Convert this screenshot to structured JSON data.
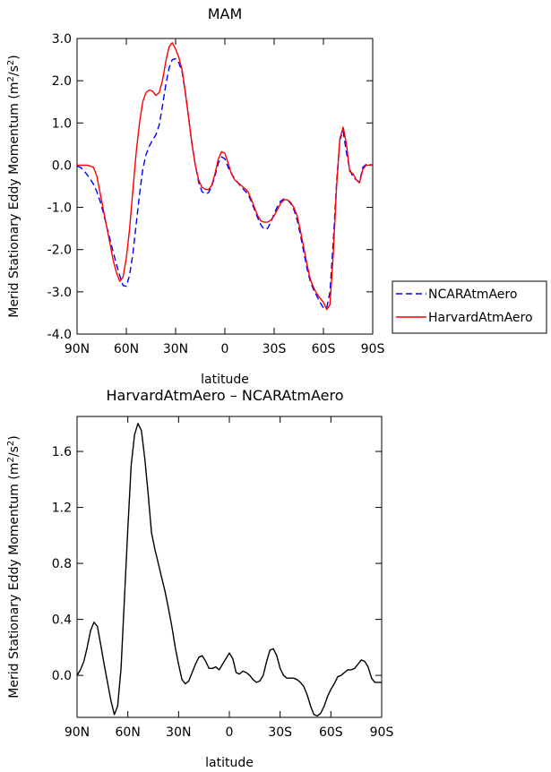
{
  "chart_data": [
    {
      "type": "line",
      "title": "MAM",
      "xlabel": "latitude",
      "ylabel": "Merid Stationary Eddy Momentum (m",
      "ylabel_sup": "2",
      "ylabel_mid": "/s",
      "ylabel_sup2": "2",
      "ylabel_end": ")",
      "xlim": [
        90,
        -90
      ],
      "ylim": [
        -4.0,
        3.0
      ],
      "xticks": [
        90,
        60,
        30,
        0,
        -30,
        -60,
        -90
      ],
      "xtick_labels": [
        "90N",
        "60N",
        "30N",
        "0",
        "30S",
        "60S",
        "90S"
      ],
      "yticks": [
        -4.0,
        -3.0,
        -2.0,
        -1.0,
        0.0,
        1.0,
        2.0,
        3.0
      ],
      "ytick_labels": [
        "-4.0",
        "-3.0",
        "-2.0",
        "-1.0",
        "0.0",
        "1.0",
        "2.0",
        "3.0"
      ],
      "legend": "right",
      "series": [
        {
          "name": "NCARAtmAero",
          "color": "#0000ff",
          "dash": true,
          "x": [
            90,
            88,
            86,
            84,
            82,
            80,
            78,
            76,
            74,
            72,
            70,
            68,
            66,
            64,
            62,
            60,
            58,
            56,
            54,
            52,
            50,
            48,
            46,
            44,
            42,
            40,
            38,
            36,
            34,
            32,
            30,
            28,
            26,
            24,
            22,
            20,
            18,
            16,
            14,
            12,
            10,
            8,
            6,
            4,
            2,
            0,
            -2,
            -4,
            -6,
            -8,
            -10,
            -12,
            -14,
            -16,
            -18,
            -20,
            -22,
            -24,
            -26,
            -28,
            -30,
            -32,
            -34,
            -36,
            -38,
            -40,
            -42,
            -44,
            -46,
            -48,
            -50,
            -52,
            -54,
            -56,
            -58,
            -60,
            -62,
            -64,
            -66,
            -68,
            -70,
            -72,
            -74,
            -76,
            -78,
            -80,
            -82,
            -84,
            -86,
            -88,
            -90
          ],
          "values": [
            -0.02,
            -0.05,
            -0.12,
            -0.22,
            -0.33,
            -0.45,
            -0.62,
            -0.85,
            -1.12,
            -1.45,
            -1.75,
            -2.05,
            -2.35,
            -2.62,
            -2.85,
            -2.87,
            -2.6,
            -2.1,
            -1.4,
            -0.7,
            -0.1,
            0.25,
            0.45,
            0.6,
            0.72,
            0.95,
            1.4,
            1.9,
            2.3,
            2.5,
            2.52,
            2.42,
            2.2,
            1.7,
            1.1,
            0.5,
            0.0,
            -0.4,
            -0.62,
            -0.68,
            -0.65,
            -0.5,
            -0.25,
            0.05,
            0.2,
            0.15,
            -0.05,
            -0.2,
            -0.32,
            -0.42,
            -0.52,
            -0.6,
            -0.68,
            -0.85,
            -1.05,
            -1.25,
            -1.42,
            -1.52,
            -1.5,
            -1.35,
            -1.15,
            -0.98,
            -0.85,
            -0.8,
            -0.82,
            -0.9,
            -1.05,
            -1.3,
            -1.65,
            -2.05,
            -2.45,
            -2.75,
            -2.95,
            -3.1,
            -3.25,
            -3.38,
            -3.38,
            -3.0,
            -1.8,
            -0.4,
            0.6,
            0.8,
            0.3,
            -0.1,
            -0.28,
            -0.35,
            -0.4,
            -0.05,
            0.02,
            0.02,
            0.0
          ]
        },
        {
          "name": "HarvardAtmAero",
          "color": "#ff0000",
          "dash": false,
          "x": [
            90,
            88,
            86,
            84,
            82,
            80,
            78,
            76,
            74,
            72,
            70,
            68,
            66,
            64,
            62,
            60,
            58,
            56,
            54,
            52,
            50,
            48,
            46,
            44,
            42,
            40,
            38,
            36,
            34,
            32,
            30,
            28,
            26,
            24,
            22,
            20,
            18,
            16,
            14,
            12,
            10,
            8,
            6,
            4,
            2,
            0,
            -2,
            -4,
            -6,
            -8,
            -10,
            -12,
            -14,
            -16,
            -18,
            -20,
            -22,
            -24,
            -26,
            -28,
            -30,
            -32,
            -34,
            -36,
            -38,
            -40,
            -42,
            -44,
            -46,
            -48,
            -50,
            -52,
            -54,
            -56,
            -58,
            -60,
            -62,
            -64,
            -66,
            -68,
            -70,
            -72,
            -74,
            -76,
            -78,
            -80,
            -82,
            -84,
            -86,
            -88,
            -90
          ],
          "values": [
            0.0,
            0.0,
            0.0,
            0.0,
            -0.02,
            -0.05,
            -0.25,
            -0.65,
            -1.05,
            -1.45,
            -1.85,
            -2.25,
            -2.55,
            -2.75,
            -2.65,
            -2.2,
            -1.5,
            -0.6,
            0.3,
            1.0,
            1.5,
            1.72,
            1.78,
            1.75,
            1.65,
            1.72,
            2.0,
            2.45,
            2.8,
            2.9,
            2.75,
            2.55,
            2.25,
            1.7,
            1.1,
            0.5,
            0.0,
            -0.35,
            -0.52,
            -0.57,
            -0.58,
            -0.48,
            -0.2,
            0.15,
            0.32,
            0.28,
            0.05,
            -0.2,
            -0.35,
            -0.42,
            -0.48,
            -0.55,
            -0.62,
            -0.8,
            -1.0,
            -1.2,
            -1.32,
            -1.35,
            -1.35,
            -1.3,
            -1.2,
            -1.05,
            -0.9,
            -0.82,
            -0.82,
            -0.88,
            -1.0,
            -1.2,
            -1.55,
            -1.95,
            -2.35,
            -2.7,
            -2.9,
            -3.05,
            -3.15,
            -3.25,
            -3.42,
            -3.3,
            -2.1,
            -0.5,
            0.62,
            0.9,
            0.5,
            -0.15,
            -0.2,
            -0.35,
            -0.42,
            -0.1,
            0.0,
            0.0,
            0.0
          ]
        }
      ]
    },
    {
      "type": "line",
      "title": "HarvardAtmAero – NCARAtmAero",
      "xlabel": "latitude",
      "ylabel": "Merid Stationary Eddy Momentum (m",
      "ylabel_sup": "2",
      "ylabel_mid": "/s",
      "ylabel_sup2": "2",
      "ylabel_end": ")",
      "xlim": [
        90,
        -90
      ],
      "ylim": [
        -0.3,
        1.85
      ],
      "xticks": [
        90,
        60,
        30,
        0,
        -30,
        -60,
        -90
      ],
      "xtick_labels": [
        "90N",
        "60N",
        "30N",
        "0",
        "30S",
        "60S",
        "90S"
      ],
      "yticks": [
        0.0,
        0.4,
        0.8,
        1.2,
        1.6
      ],
      "ytick_labels": [
        "0.0",
        "0.4",
        "0.8",
        "1.2",
        "1.6"
      ],
      "series": [
        {
          "color": "#000000",
          "dash": false,
          "x": [
            90,
            88,
            86,
            84,
            82,
            80,
            78,
            76,
            74,
            72,
            70,
            68,
            66,
            64,
            62,
            60,
            58,
            56,
            54,
            52,
            50,
            48,
            46,
            44,
            42,
            40,
            38,
            36,
            34,
            32,
            30,
            28,
            26,
            24,
            22,
            20,
            18,
            16,
            14,
            12,
            10,
            8,
            6,
            4,
            2,
            0,
            -2,
            -4,
            -6,
            -8,
            -10,
            -12,
            -14,
            -16,
            -18,
            -20,
            -22,
            -24,
            -26,
            -28,
            -30,
            -32,
            -34,
            -36,
            -38,
            -40,
            -42,
            -44,
            -46,
            -48,
            -50,
            -52,
            -54,
            -56,
            -58,
            -60,
            -62,
            -64,
            -66,
            -68,
            -70,
            -72,
            -74,
            -76,
            -78,
            -80,
            -82,
            -84,
            -86,
            -88,
            -90
          ],
          "values": [
            0.0,
            0.04,
            0.1,
            0.2,
            0.32,
            0.38,
            0.35,
            0.22,
            0.08,
            -0.05,
            -0.18,
            -0.28,
            -0.22,
            0.05,
            0.55,
            1.05,
            1.5,
            1.72,
            1.8,
            1.75,
            1.55,
            1.3,
            1.02,
            0.9,
            0.8,
            0.7,
            0.6,
            0.48,
            0.35,
            0.2,
            0.08,
            -0.03,
            -0.06,
            -0.04,
            0.02,
            0.08,
            0.13,
            0.14,
            0.1,
            0.05,
            0.05,
            0.06,
            0.04,
            0.08,
            0.12,
            0.16,
            0.12,
            0.02,
            0.01,
            0.03,
            0.02,
            0.0,
            -0.03,
            -0.05,
            -0.04,
            0.0,
            0.1,
            0.18,
            0.19,
            0.14,
            0.05,
            0.0,
            -0.02,
            -0.02,
            -0.02,
            -0.03,
            -0.05,
            -0.08,
            -0.14,
            -0.22,
            -0.28,
            -0.29,
            -0.27,
            -0.22,
            -0.15,
            -0.1,
            -0.06,
            -0.01,
            0.0,
            0.02,
            0.04,
            0.04,
            0.05,
            0.08,
            0.11,
            0.1,
            0.06,
            -0.02,
            -0.05,
            -0.05,
            -0.05
          ]
        }
      ]
    }
  ]
}
